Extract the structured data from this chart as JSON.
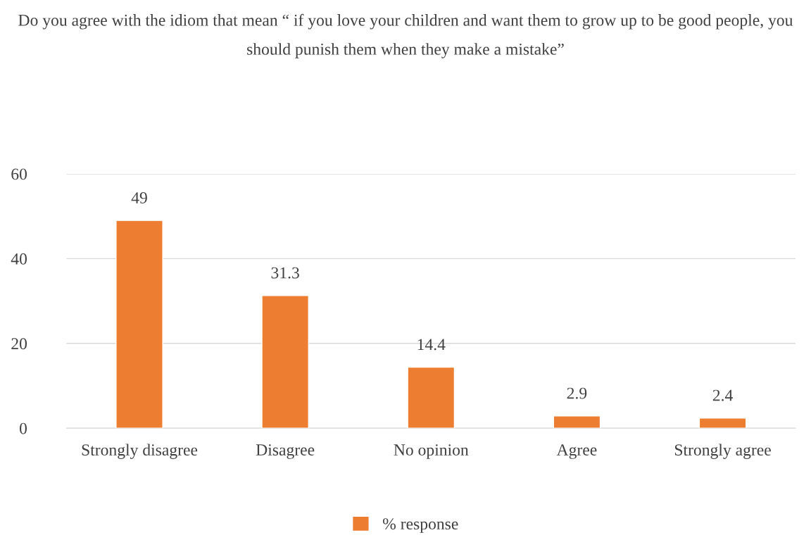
{
  "chart_data": {
    "type": "bar",
    "title": "Do you agree with the idiom that mean “ if you love your children and want them to grow up to be good people, you should punish them when they make a mistake”",
    "categories": [
      "Strongly disagree",
      "Disagree",
      "No opinion",
      "Agree",
      "Strongly agree"
    ],
    "series": [
      {
        "name": "% response",
        "color": "#ed7d31",
        "values": [
          49,
          31.3,
          14.4,
          2.9,
          2.4
        ]
      }
    ],
    "ylim": [
      0,
      60
    ],
    "yticks": [
      0,
      20,
      40,
      60
    ],
    "grid": "y",
    "legend": "bottom",
    "data_labels": true
  }
}
